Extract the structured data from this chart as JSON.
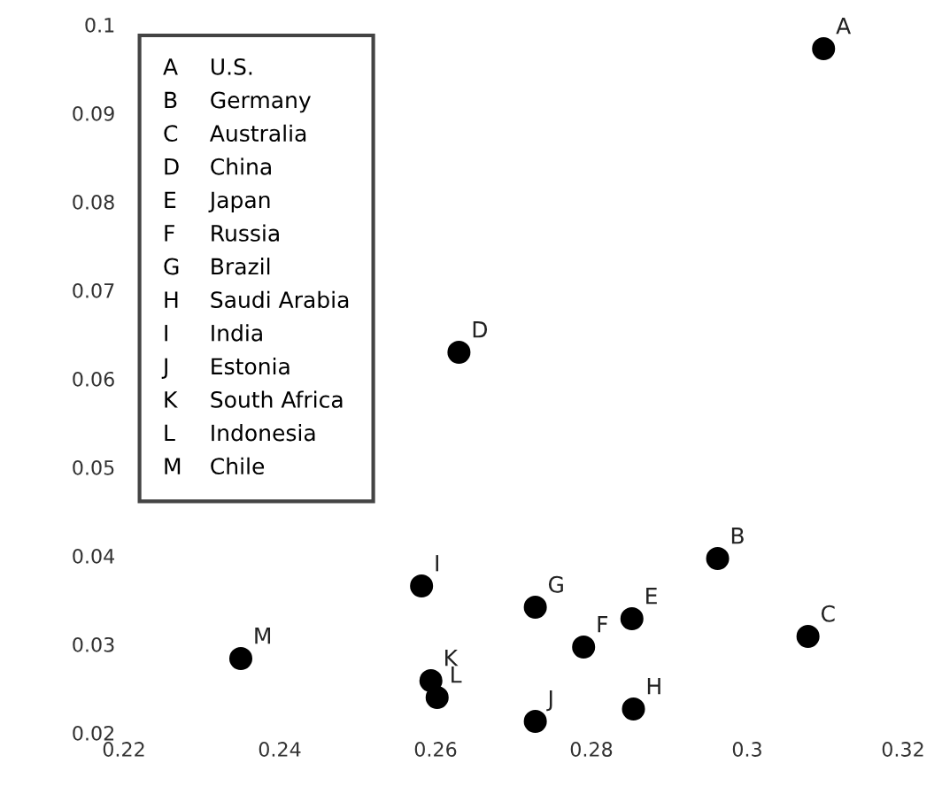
{
  "chart_data": {
    "type": "scatter",
    "x": [
      0.3098,
      0.2962,
      0.3078,
      0.263,
      0.2852,
      0.279,
      0.2728,
      0.2854,
      0.2582,
      0.2728,
      0.2594,
      0.2602,
      0.235
    ],
    "series": [
      {
        "color": "#000000",
        "marker": "circle",
        "values": [
          0.0973,
          0.0397,
          0.0309,
          0.063,
          0.0329,
          0.0297,
          0.0342,
          0.0227,
          0.0366,
          0.0213,
          0.0259,
          0.024,
          0.0284
        ],
        "value_labels": [
          "A",
          "B",
          "C",
          "D",
          "E",
          "F",
          "G",
          "H",
          "I",
          "J",
          "K",
          "L",
          "M"
        ]
      }
    ],
    "annotations": [
      "A U.S.",
      "B Germany",
      "C Australia",
      "D China",
      "E Japan",
      "F Russia",
      "G Brazil",
      "H Saudi Arabia",
      "I India",
      "J Estonia",
      "K South Africa",
      "L Indonesia",
      "M Chile"
    ],
    "xlim": [
      0.22,
      0.32
    ],
    "xticks": [
      0.22,
      0.24,
      0.26,
      0.28,
      0.3,
      0.32
    ],
    "ylim": [
      0.02,
      0.1
    ],
    "yticks": [
      0.02,
      0.03,
      0.04,
      0.05,
      0.06,
      0.07,
      0.08,
      0.09,
      0.1
    ],
    "grid": false
  }
}
